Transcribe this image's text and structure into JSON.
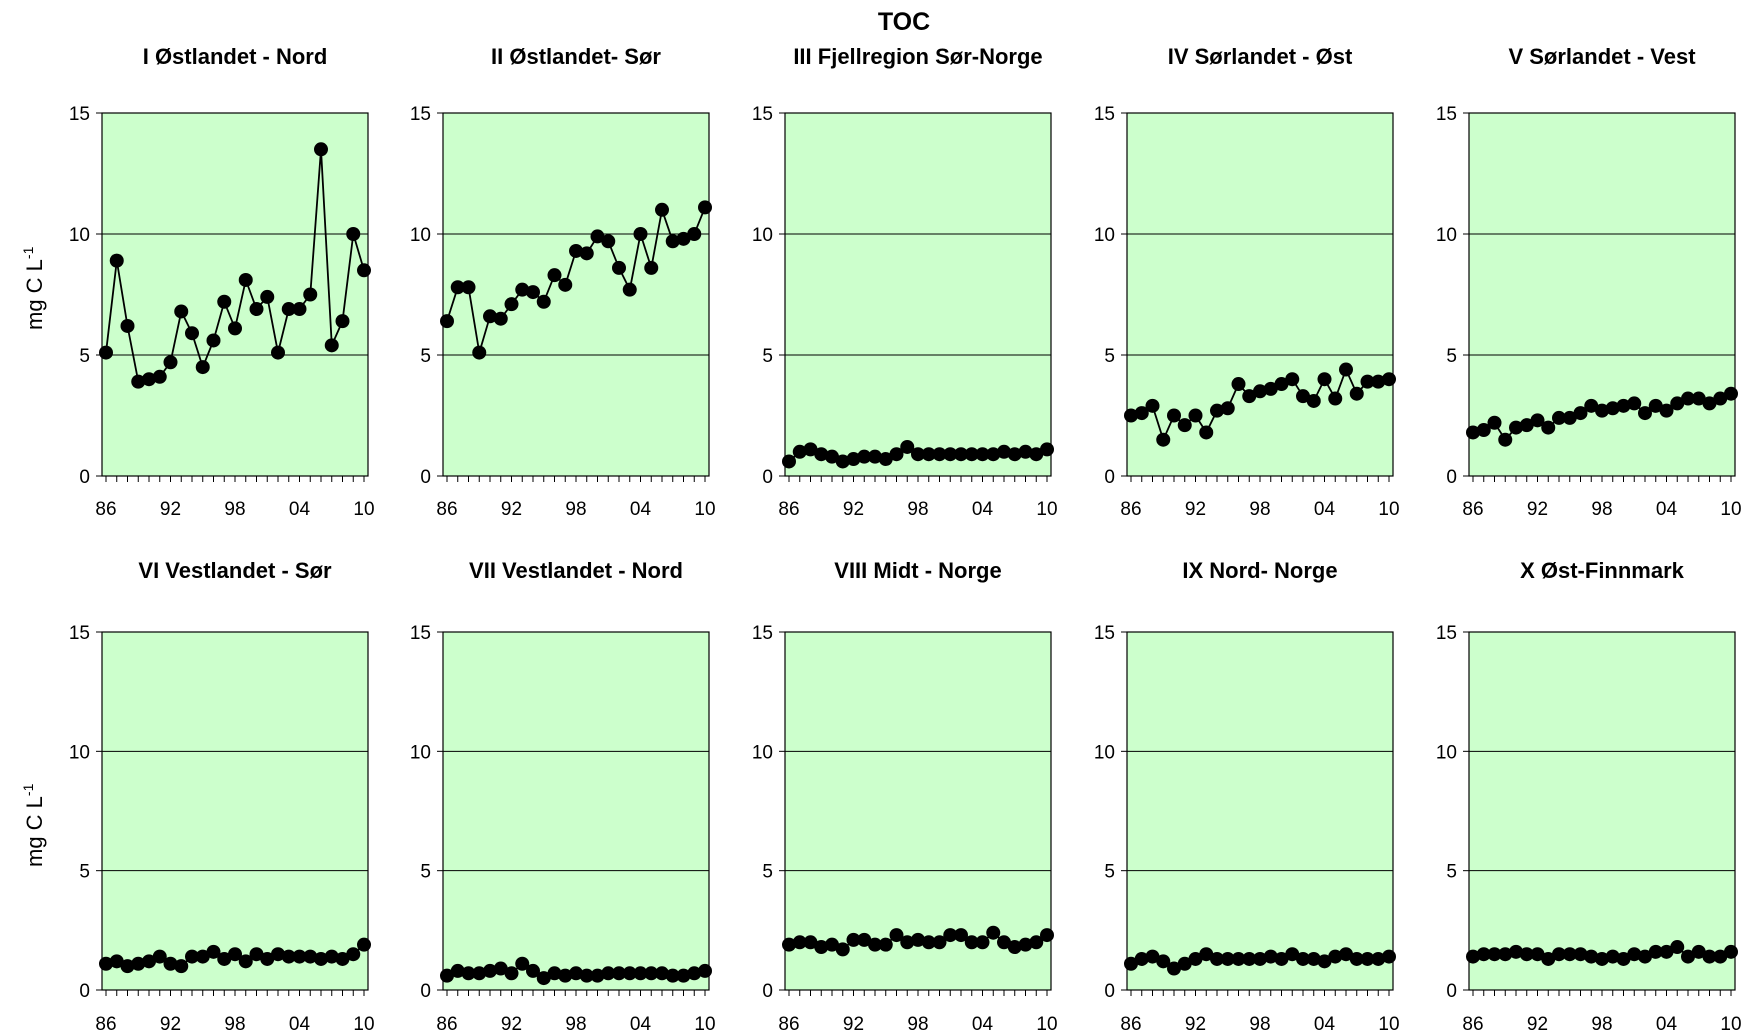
{
  "figure": {
    "title": "TOC",
    "ylabel_main": "mg C L",
    "ylabel_sup": "-1"
  },
  "chart_data": [
    {
      "type": "line",
      "title": "I Østlandet - Nord",
      "ylim": [
        0,
        15
      ],
      "yticks": [
        0,
        5,
        10,
        15
      ],
      "xlim": [
        1986,
        2010
      ],
      "xticks": [
        1986,
        1992,
        1998,
        2004,
        2010
      ],
      "xtick_labels": [
        "86",
        "92",
        "98",
        "04",
        "10"
      ],
      "grid": "horizontal",
      "x": [
        1986,
        1987,
        1988,
        1989,
        1990,
        1991,
        1992,
        1993,
        1994,
        1995,
        1996,
        1997,
        1998,
        1999,
        2000,
        2001,
        2002,
        2003,
        2004,
        2005,
        2006,
        2007,
        2008,
        2009,
        2010
      ],
      "values": [
        5.1,
        8.9,
        6.2,
        3.9,
        4.0,
        4.1,
        4.7,
        6.8,
        5.9,
        4.5,
        5.6,
        7.2,
        6.1,
        8.1,
        6.9,
        7.4,
        5.1,
        6.9,
        6.9,
        7.5,
        13.5,
        5.4,
        6.4,
        10.0,
        8.5
      ]
    },
    {
      "type": "line",
      "title": "II Østlandet- Sør",
      "ylim": [
        0,
        15
      ],
      "yticks": [
        0,
        5,
        10,
        15
      ],
      "xlim": [
        1986,
        2010
      ],
      "xticks": [
        1986,
        1992,
        1998,
        2004,
        2010
      ],
      "xtick_labels": [
        "86",
        "92",
        "98",
        "04",
        "10"
      ],
      "grid": "horizontal",
      "x": [
        1986,
        1987,
        1988,
        1989,
        1990,
        1991,
        1992,
        1993,
        1994,
        1995,
        1996,
        1997,
        1998,
        1999,
        2000,
        2001,
        2002,
        2003,
        2004,
        2005,
        2006,
        2007,
        2008,
        2009,
        2010
      ],
      "values": [
        6.4,
        7.8,
        7.8,
        5.1,
        6.6,
        6.5,
        7.1,
        7.7,
        7.6,
        7.2,
        8.3,
        7.9,
        9.3,
        9.2,
        9.9,
        9.7,
        8.6,
        7.7,
        10.0,
        8.6,
        11.0,
        9.7,
        9.8,
        10.0,
        11.1
      ]
    },
    {
      "type": "line",
      "title": "III Fjellregion Sør-Norge",
      "ylim": [
        0,
        15
      ],
      "yticks": [
        0,
        5,
        10,
        15
      ],
      "xlim": [
        1986,
        2010
      ],
      "xticks": [
        1986,
        1992,
        1998,
        2004,
        2010
      ],
      "xtick_labels": [
        "86",
        "92",
        "98",
        "04",
        "10"
      ],
      "grid": "horizontal",
      "x": [
        1986,
        1987,
        1988,
        1989,
        1990,
        1991,
        1992,
        1993,
        1994,
        1995,
        1996,
        1997,
        1998,
        1999,
        2000,
        2001,
        2002,
        2003,
        2004,
        2005,
        2006,
        2007,
        2008,
        2009,
        2010
      ],
      "values": [
        0.6,
        1.0,
        1.1,
        0.9,
        0.8,
        0.6,
        0.7,
        0.8,
        0.8,
        0.7,
        0.9,
        1.2,
        0.9,
        0.9,
        0.9,
        0.9,
        0.9,
        0.9,
        0.9,
        0.9,
        1.0,
        0.9,
        1.0,
        0.9,
        1.1
      ]
    },
    {
      "type": "line",
      "title": "IV Sørlandet - Øst",
      "ylim": [
        0,
        15
      ],
      "yticks": [
        0,
        5,
        10,
        15
      ],
      "xlim": [
        1986,
        2010
      ],
      "xticks": [
        1986,
        1992,
        1998,
        2004,
        2010
      ],
      "xtick_labels": [
        "86",
        "92",
        "98",
        "04",
        "10"
      ],
      "grid": "horizontal",
      "x": [
        1986,
        1987,
        1988,
        1989,
        1990,
        1991,
        1992,
        1993,
        1994,
        1995,
        1996,
        1997,
        1998,
        1999,
        2000,
        2001,
        2002,
        2003,
        2004,
        2005,
        2006,
        2007,
        2008,
        2009,
        2010
      ],
      "values": [
        2.5,
        2.6,
        2.9,
        1.5,
        2.5,
        2.1,
        2.5,
        1.8,
        2.7,
        2.8,
        3.8,
        3.3,
        3.5,
        3.6,
        3.8,
        4.0,
        3.3,
        3.1,
        4.0,
        3.2,
        4.4,
        3.4,
        3.9,
        3.9,
        4.0
      ]
    },
    {
      "type": "line",
      "title": "V Sørlandet - Vest",
      "ylim": [
        0,
        15
      ],
      "yticks": [
        0,
        5,
        10,
        15
      ],
      "xlim": [
        1986,
        2010
      ],
      "xticks": [
        1986,
        1992,
        1998,
        2004,
        2010
      ],
      "xtick_labels": [
        "86",
        "92",
        "98",
        "04",
        "10"
      ],
      "grid": "horizontal",
      "x": [
        1986,
        1987,
        1988,
        1989,
        1990,
        1991,
        1992,
        1993,
        1994,
        1995,
        1996,
        1997,
        1998,
        1999,
        2000,
        2001,
        2002,
        2003,
        2004,
        2005,
        2006,
        2007,
        2008,
        2009,
        2010
      ],
      "values": [
        1.8,
        1.9,
        2.2,
        1.5,
        2.0,
        2.1,
        2.3,
        2.0,
        2.4,
        2.4,
        2.6,
        2.9,
        2.7,
        2.8,
        2.9,
        3.0,
        2.6,
        2.9,
        2.7,
        3.0,
        3.2,
        3.2,
        3.0,
        3.2,
        3.4
      ]
    },
    {
      "type": "line",
      "title": "VI Vestlandet - Sør",
      "ylim": [
        0,
        15
      ],
      "yticks": [
        0,
        5,
        10,
        15
      ],
      "xlim": [
        1986,
        2010
      ],
      "xticks": [
        1986,
        1992,
        1998,
        2004,
        2010
      ],
      "xtick_labels": [
        "86",
        "92",
        "98",
        "04",
        "10"
      ],
      "grid": "horizontal",
      "x": [
        1986,
        1987,
        1988,
        1989,
        1990,
        1991,
        1992,
        1993,
        1994,
        1995,
        1996,
        1997,
        1998,
        1999,
        2000,
        2001,
        2002,
        2003,
        2004,
        2005,
        2006,
        2007,
        2008,
        2009,
        2010
      ],
      "values": [
        1.1,
        1.2,
        1.0,
        1.1,
        1.2,
        1.4,
        1.1,
        1.0,
        1.4,
        1.4,
        1.6,
        1.3,
        1.5,
        1.2,
        1.5,
        1.3,
        1.5,
        1.4,
        1.4,
        1.4,
        1.3,
        1.4,
        1.3,
        1.5,
        1.9
      ]
    },
    {
      "type": "line",
      "title": "VII Vestlandet - Nord",
      "ylim": [
        0,
        15
      ],
      "yticks": [
        0,
        5,
        10,
        15
      ],
      "xlim": [
        1986,
        2010
      ],
      "xticks": [
        1986,
        1992,
        1998,
        2004,
        2010
      ],
      "xtick_labels": [
        "86",
        "92",
        "98",
        "04",
        "10"
      ],
      "grid": "horizontal",
      "x": [
        1986,
        1987,
        1988,
        1989,
        1990,
        1991,
        1992,
        1993,
        1994,
        1995,
        1996,
        1997,
        1998,
        1999,
        2000,
        2001,
        2002,
        2003,
        2004,
        2005,
        2006,
        2007,
        2008,
        2009,
        2010
      ],
      "values": [
        0.6,
        0.8,
        0.7,
        0.7,
        0.8,
        0.9,
        0.7,
        1.1,
        0.8,
        0.5,
        0.7,
        0.6,
        0.7,
        0.6,
        0.6,
        0.7,
        0.7,
        0.7,
        0.7,
        0.7,
        0.7,
        0.6,
        0.6,
        0.7,
        0.8
      ]
    },
    {
      "type": "line",
      "title": "VIII Midt - Norge",
      "ylim": [
        0,
        15
      ],
      "yticks": [
        0,
        5,
        10,
        15
      ],
      "xlim": [
        1986,
        2010
      ],
      "xticks": [
        1986,
        1992,
        1998,
        2004,
        2010
      ],
      "xtick_labels": [
        "86",
        "92",
        "98",
        "04",
        "10"
      ],
      "grid": "horizontal",
      "x": [
        1986,
        1987,
        1988,
        1989,
        1990,
        1991,
        1992,
        1993,
        1994,
        1995,
        1996,
        1997,
        1998,
        1999,
        2000,
        2001,
        2002,
        2003,
        2004,
        2005,
        2006,
        2007,
        2008,
        2009,
        2010
      ],
      "values": [
        1.9,
        2.0,
        2.0,
        1.8,
        1.9,
        1.7,
        2.1,
        2.1,
        1.9,
        1.9,
        2.3,
        2.0,
        2.1,
        2.0,
        2.0,
        2.3,
        2.3,
        2.0,
        2.0,
        2.4,
        2.0,
        1.8,
        1.9,
        2.0,
        2.3
      ]
    },
    {
      "type": "line",
      "title": "IX Nord- Norge",
      "ylim": [
        0,
        15
      ],
      "yticks": [
        0,
        5,
        10,
        15
      ],
      "xlim": [
        1986,
        2010
      ],
      "xticks": [
        1986,
        1992,
        1998,
        2004,
        2010
      ],
      "xtick_labels": [
        "86",
        "92",
        "98",
        "04",
        "10"
      ],
      "grid": "horizontal",
      "x": [
        1986,
        1987,
        1988,
        1989,
        1990,
        1991,
        1992,
        1993,
        1994,
        1995,
        1996,
        1997,
        1998,
        1999,
        2000,
        2001,
        2002,
        2003,
        2004,
        2005,
        2006,
        2007,
        2008,
        2009,
        2010
      ],
      "values": [
        1.1,
        1.3,
        1.4,
        1.2,
        0.9,
        1.1,
        1.3,
        1.5,
        1.3,
        1.3,
        1.3,
        1.3,
        1.3,
        1.4,
        1.3,
        1.5,
        1.3,
        1.3,
        1.2,
        1.4,
        1.5,
        1.3,
        1.3,
        1.3,
        1.4
      ]
    },
    {
      "type": "line",
      "title": "X Øst-Finnmark",
      "ylim": [
        0,
        15
      ],
      "yticks": [
        0,
        5,
        10,
        15
      ],
      "xlim": [
        1986,
        2010
      ],
      "xticks": [
        1986,
        1992,
        1998,
        2004,
        2010
      ],
      "xtick_labels": [
        "86",
        "92",
        "98",
        "04",
        "10"
      ],
      "grid": "horizontal",
      "x": [
        1986,
        1987,
        1988,
        1989,
        1990,
        1991,
        1992,
        1993,
        1994,
        1995,
        1996,
        1997,
        1998,
        1999,
        2000,
        2001,
        2002,
        2003,
        2004,
        2005,
        2006,
        2007,
        2008,
        2009,
        2010
      ],
      "values": [
        1.4,
        1.5,
        1.5,
        1.5,
        1.6,
        1.5,
        1.5,
        1.3,
        1.5,
        1.5,
        1.5,
        1.4,
        1.3,
        1.4,
        1.3,
        1.5,
        1.4,
        1.6,
        1.6,
        1.8,
        1.4,
        1.6,
        1.4,
        1.4,
        1.6
      ]
    }
  ]
}
